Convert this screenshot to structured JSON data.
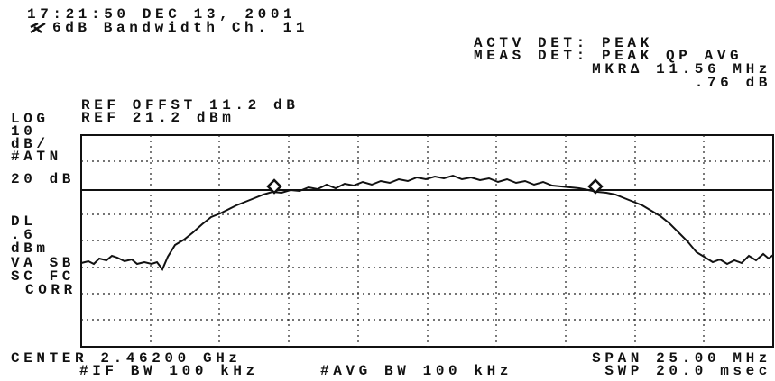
{
  "header": {
    "timestamp": "17:21:50 DEC 13, 2001",
    "title": "6dB Bandwidth Ch. 11"
  },
  "status": [
    "ACTV DET: PEAK",
    "MEAS DET: PEAK QP AVG",
    "MKRΔ 11.56 MHz",
    ".76 dB"
  ],
  "reference": [
    "REF OFFST 11.2 dB",
    "REF 21.2 dBm"
  ],
  "side_labels": [
    "LOG",
    "10",
    "dB/",
    "#ATN",
    "20 dB",
    "DL",
    ".6",
    "dBm",
    "VA SB",
    "SC FC",
    "CORR"
  ],
  "footer": {
    "center": "CENTER 2.46200 GHz",
    "if_bw": "#IF BW 100 kHz",
    "avg_bw": "#AVG BW 100 kHz",
    "span": "SPAN 25.00 MHz",
    "sweep": "SWP 20.0 msec"
  }
}
